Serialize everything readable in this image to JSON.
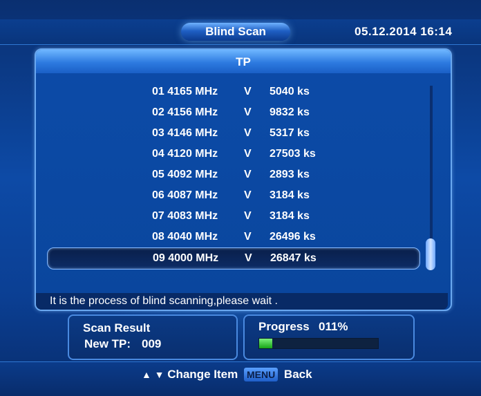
{
  "header": {
    "title": "Blind Scan",
    "datetime": "05.12.2014  16:14"
  },
  "panel": {
    "title": "TP",
    "rows": [
      {
        "idfreq": "01 4165 MHz",
        "pol": "V",
        "sr": "5040 ks"
      },
      {
        "idfreq": "02 4156 MHz",
        "pol": "V",
        "sr": "9832 ks"
      },
      {
        "idfreq": "03 4146 MHz",
        "pol": "V",
        "sr": "5317 ks"
      },
      {
        "idfreq": "04 4120 MHz",
        "pol": "V",
        "sr": "27503 ks"
      },
      {
        "idfreq": "05 4092 MHz",
        "pol": "V",
        "sr": "2893 ks"
      },
      {
        "idfreq": "06 4087 MHz",
        "pol": "V",
        "sr": "3184 ks"
      },
      {
        "idfreq": "07 4083 MHz",
        "pol": "V",
        "sr": "3184 ks"
      },
      {
        "idfreq": "08 4040 MHz",
        "pol": "V",
        "sr": "26496 ks"
      },
      {
        "idfreq": "09 4000 MHz",
        "pol": "V",
        "sr": "26847 ks"
      }
    ],
    "selected_index": 8,
    "status": "It is the process of blind scanning,please wait ."
  },
  "scan_result": {
    "label": "Scan Result",
    "new_tp_label": "New TP:",
    "new_tp_count": "009"
  },
  "progress": {
    "label": "Progress",
    "value_text": "011%",
    "fraction": 0.11
  },
  "footer": {
    "change_item": "Change Item",
    "menu_key": "MENU",
    "back": "Back"
  },
  "icons": {
    "up": "up-triangle-icon",
    "down": "down-triangle-icon"
  }
}
